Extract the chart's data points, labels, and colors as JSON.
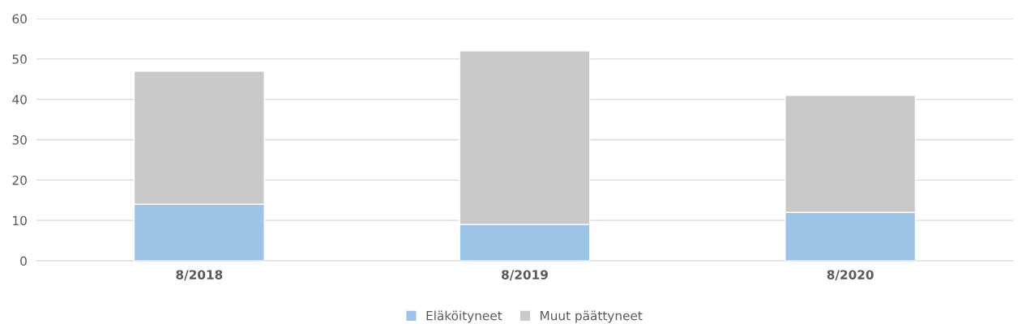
{
  "chart_data": {
    "type": "bar",
    "stacked": true,
    "categories": [
      "8/2018",
      "8/2019",
      "8/2020"
    ],
    "series": [
      {
        "name": "Eläköityneet",
        "color": "#9dc3e6",
        "values": [
          14,
          9,
          12
        ]
      },
      {
        "name": "Muut päättyneet",
        "color": "#c9c9c9",
        "values": [
          33,
          43,
          29
        ]
      }
    ],
    "ylim": [
      0,
      60
    ],
    "yticks": [
      0,
      10,
      20,
      30,
      40,
      50,
      60
    ],
    "grid": "y",
    "legend": "bottom"
  }
}
